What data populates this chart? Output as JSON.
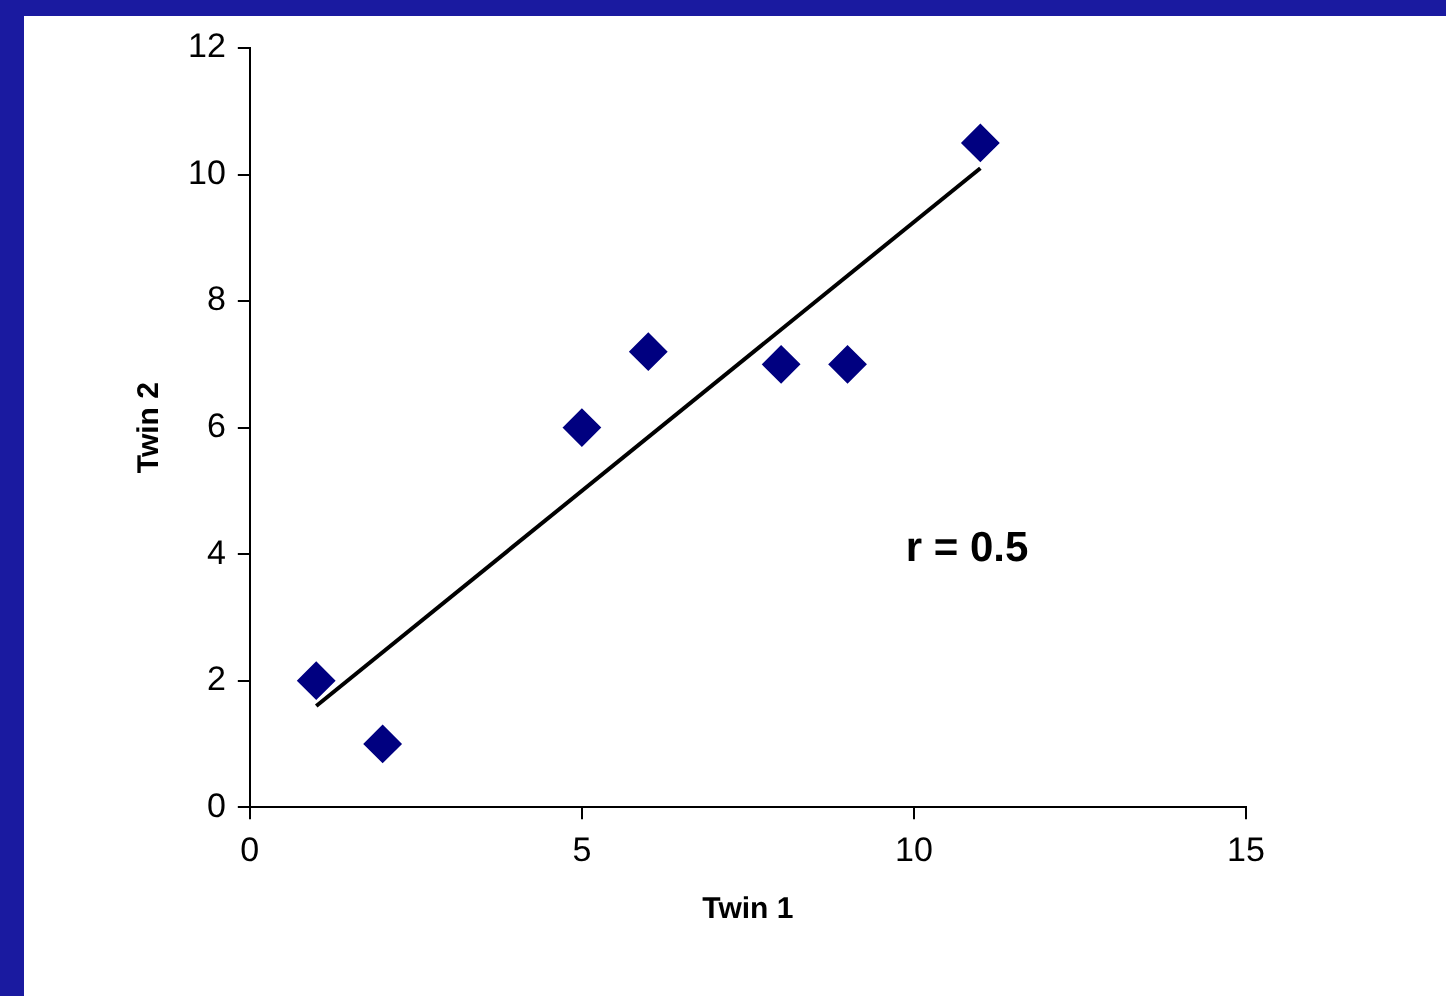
{
  "chart_data": {
    "type": "scatter",
    "xlabel": "Twin 1",
    "ylabel": "Twin 2",
    "xlim": [
      0,
      15
    ],
    "xticks": [
      0,
      5,
      10,
      15
    ],
    "ylim": [
      0,
      12
    ],
    "yticks": [
      0,
      2,
      4,
      6,
      8,
      10,
      12
    ],
    "grid": false,
    "legend": false,
    "annotations": [
      "r = 0.5"
    ],
    "series": [
      {
        "type": "scatter",
        "marker": "diamond",
        "color": "#000080",
        "x": [
          1,
          2,
          5,
          6,
          8,
          9,
          11
        ],
        "values": [
          2,
          1,
          6,
          7.2,
          7,
          7,
          10.5
        ]
      },
      {
        "type": "line",
        "color": "#000000",
        "x": [
          1,
          11
        ],
        "values": [
          1.6,
          10.1
        ]
      }
    ]
  }
}
